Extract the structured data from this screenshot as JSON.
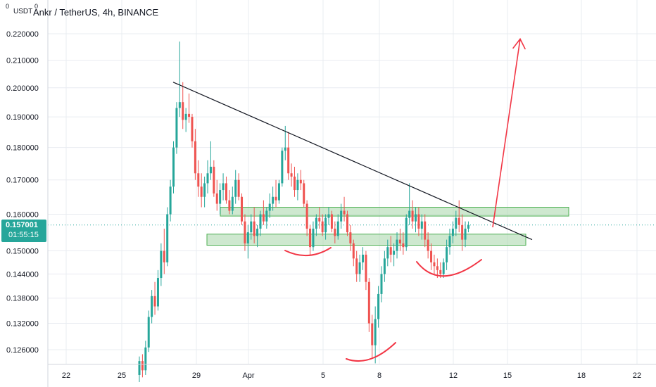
{
  "header": {
    "title": "Ankr / TetherUS, 4h, BINANCE",
    "unit": "USDT",
    "gear_glyph": "0"
  },
  "price_badge": {
    "value": "0.157001",
    "countdown": "01:55:15",
    "color": "#26a69a"
  },
  "colors": {
    "up": "#26a69a",
    "down": "#ef5350",
    "zone_fill": "#a5d6a7",
    "zone_stroke": "#4caf50",
    "trendline": "#131722",
    "annotation": "#f23645"
  },
  "chart_data": {
    "type": "candlestick",
    "title": "Ankr / TetherUS, 4h, BINANCE",
    "y_scale": "log",
    "y_tick_labels": [
      "0.220000",
      "0.210000",
      "0.200000",
      "0.190000",
      "0.180000",
      "0.170000",
      "0.160000",
      "0.150000",
      "0.144000",
      "0.138000",
      "0.132000",
      "0.126000"
    ],
    "x_tick_labels": [
      "22",
      "25",
      "29",
      "Apr",
      "5",
      "8",
      "12",
      "15",
      "18",
      "22"
    ],
    "current_price": 0.157001,
    "series": [
      {
        "name": "Ankr / TetherUS",
        "candles": [
          [
            0.1205,
            0.1245,
            0.119,
            0.1235
          ],
          [
            0.1235,
            0.125,
            0.12,
            0.1215
          ],
          [
            0.1215,
            0.128,
            0.1205,
            0.1265
          ],
          [
            0.1265,
            0.135,
            0.1255,
            0.1335
          ],
          [
            0.1335,
            0.14,
            0.132,
            0.1385
          ],
          [
            0.1385,
            0.142,
            0.134,
            0.136
          ],
          [
            0.136,
            0.145,
            0.135,
            0.143
          ],
          [
            0.143,
            0.152,
            0.141,
            0.15
          ],
          [
            0.15,
            0.156,
            0.144,
            0.147
          ],
          [
            0.147,
            0.162,
            0.146,
            0.16
          ],
          [
            0.16,
            0.17,
            0.158,
            0.168
          ],
          [
            0.168,
            0.182,
            0.166,
            0.18
          ],
          [
            0.18,
            0.195,
            0.178,
            0.193
          ],
          [
            0.193,
            0.217,
            0.19,
            0.195
          ],
          [
            0.195,
            0.202,
            0.186,
            0.189
          ],
          [
            0.189,
            0.193,
            0.185,
            0.191
          ],
          [
            0.191,
            0.198,
            0.188,
            0.19
          ],
          [
            0.19,
            0.191,
            0.18,
            0.182
          ],
          [
            0.182,
            0.186,
            0.17,
            0.172
          ],
          [
            0.172,
            0.176,
            0.165,
            0.168
          ],
          [
            0.168,
            0.172,
            0.162,
            0.165
          ],
          [
            0.165,
            0.171,
            0.162,
            0.169
          ],
          [
            0.169,
            0.176,
            0.166,
            0.172
          ],
          [
            0.172,
            0.182,
            0.17,
            0.174
          ],
          [
            0.174,
            0.176,
            0.165,
            0.166
          ],
          [
            0.166,
            0.17,
            0.161,
            0.163
          ],
          [
            0.163,
            0.169,
            0.16,
            0.167
          ],
          [
            0.167,
            0.172,
            0.164,
            0.169
          ],
          [
            0.169,
            0.171,
            0.163,
            0.164
          ],
          [
            0.164,
            0.167,
            0.16,
            0.161
          ],
          [
            0.161,
            0.168,
            0.16,
            0.165
          ],
          [
            0.165,
            0.173,
            0.163,
            0.17
          ],
          [
            0.17,
            0.172,
            0.164,
            0.165
          ],
          [
            0.165,
            0.166,
            0.157,
            0.158
          ],
          [
            0.158,
            0.16,
            0.15,
            0.152
          ],
          [
            0.152,
            0.157,
            0.148,
            0.155
          ],
          [
            0.155,
            0.16,
            0.153,
            0.158
          ],
          [
            0.158,
            0.162,
            0.152,
            0.154
          ],
          [
            0.154,
            0.157,
            0.151,
            0.156
          ],
          [
            0.156,
            0.161,
            0.154,
            0.16
          ],
          [
            0.16,
            0.164,
            0.157,
            0.158
          ],
          [
            0.158,
            0.162,
            0.156,
            0.161
          ],
          [
            0.161,
            0.166,
            0.159,
            0.163
          ],
          [
            0.163,
            0.168,
            0.161,
            0.165
          ],
          [
            0.165,
            0.17,
            0.162,
            0.164
          ],
          [
            0.164,
            0.17,
            0.163,
            0.169
          ],
          [
            0.169,
            0.18,
            0.168,
            0.179
          ],
          [
            0.179,
            0.187,
            0.176,
            0.18
          ],
          [
            0.18,
            0.185,
            0.17,
            0.172
          ],
          [
            0.172,
            0.175,
            0.168,
            0.171
          ],
          [
            0.171,
            0.174,
            0.165,
            0.167
          ],
          [
            0.167,
            0.172,
            0.164,
            0.17
          ],
          [
            0.17,
            0.173,
            0.167,
            0.169
          ],
          [
            0.169,
            0.17,
            0.162,
            0.163
          ],
          [
            0.163,
            0.164,
            0.154,
            0.156
          ],
          [
            0.156,
            0.157,
            0.149,
            0.151
          ],
          [
            0.151,
            0.158,
            0.15,
            0.156
          ],
          [
            0.156,
            0.16,
            0.154,
            0.159
          ],
          [
            0.159,
            0.162,
            0.156,
            0.158
          ],
          [
            0.158,
            0.16,
            0.154,
            0.155
          ],
          [
            0.155,
            0.16,
            0.153,
            0.159
          ],
          [
            0.159,
            0.162,
            0.157,
            0.16
          ],
          [
            0.16,
            0.161,
            0.155,
            0.156
          ],
          [
            0.156,
            0.158,
            0.152,
            0.154
          ],
          [
            0.154,
            0.16,
            0.153,
            0.158
          ],
          [
            0.158,
            0.163,
            0.156,
            0.161
          ],
          [
            0.161,
            0.165,
            0.158,
            0.16
          ],
          [
            0.16,
            0.161,
            0.154,
            0.155
          ],
          [
            0.155,
            0.157,
            0.15,
            0.152
          ],
          [
            0.152,
            0.153,
            0.146,
            0.148
          ],
          [
            0.148,
            0.15,
            0.142,
            0.144
          ],
          [
            0.144,
            0.149,
            0.142,
            0.147
          ],
          [
            0.147,
            0.151,
            0.145,
            0.149
          ],
          [
            0.149,
            0.15,
            0.14,
            0.142
          ],
          [
            0.142,
            0.143,
            0.13,
            0.132
          ],
          [
            0.132,
            0.134,
            0.124,
            0.127
          ],
          [
            0.127,
            0.136,
            0.123,
            0.133
          ],
          [
            0.133,
            0.141,
            0.131,
            0.139
          ],
          [
            0.139,
            0.146,
            0.137,
            0.144
          ],
          [
            0.144,
            0.15,
            0.142,
            0.148
          ],
          [
            0.148,
            0.153,
            0.146,
            0.151
          ],
          [
            0.151,
            0.154,
            0.147,
            0.149
          ],
          [
            0.149,
            0.152,
            0.146,
            0.15
          ],
          [
            0.15,
            0.155,
            0.148,
            0.153
          ],
          [
            0.153,
            0.156,
            0.15,
            0.152
          ],
          [
            0.152,
            0.155,
            0.149,
            0.151
          ],
          [
            0.151,
            0.16,
            0.15,
            0.159
          ],
          [
            0.159,
            0.169,
            0.157,
            0.161
          ],
          [
            0.161,
            0.164,
            0.156,
            0.158
          ],
          [
            0.158,
            0.162,
            0.155,
            0.16
          ],
          [
            0.16,
            0.162,
            0.154,
            0.156
          ],
          [
            0.156,
            0.16,
            0.153,
            0.158
          ],
          [
            0.158,
            0.16,
            0.151,
            0.153
          ],
          [
            0.153,
            0.155,
            0.148,
            0.15
          ],
          [
            0.15,
            0.152,
            0.145,
            0.147
          ],
          [
            0.147,
            0.149,
            0.144,
            0.146
          ],
          [
            0.146,
            0.148,
            0.143,
            0.145
          ],
          [
            0.145,
            0.147,
            0.143,
            0.144
          ],
          [
            0.144,
            0.148,
            0.143,
            0.147
          ],
          [
            0.147,
            0.153,
            0.145,
            0.151
          ],
          [
            0.151,
            0.156,
            0.149,
            0.154
          ],
          [
            0.154,
            0.158,
            0.152,
            0.156
          ],
          [
            0.156,
            0.161,
            0.154,
            0.159
          ],
          [
            0.159,
            0.164,
            0.155,
            0.157
          ],
          [
            0.157,
            0.16,
            0.15,
            0.153
          ],
          [
            0.153,
            0.158,
            0.151,
            0.156
          ],
          [
            0.156,
            0.158,
            0.155,
            0.157
          ]
        ]
      }
    ],
    "drawings": {
      "trendline": {
        "from": [
          "~Mar 28",
          0.202
        ],
        "to": [
          "~Apr 16",
          0.153
        ]
      },
      "zones": [
        {
          "y_from": 0.1595,
          "y_to": 0.162
        },
        {
          "y_from": 0.1515,
          "y_to": 0.1545
        }
      ],
      "arrow_to": 0.218
    },
    "grid": true,
    "legend": "none"
  }
}
